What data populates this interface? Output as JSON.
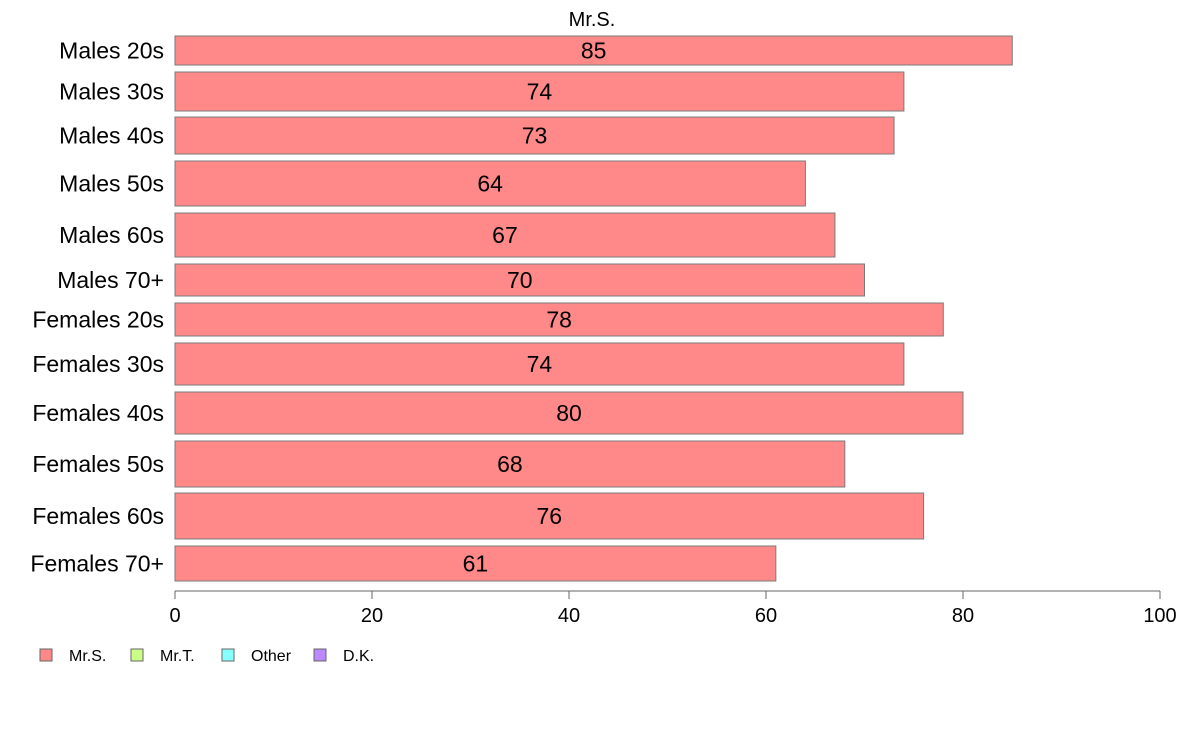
{
  "chart_data": {
    "type": "bar",
    "orientation": "horizontal",
    "title": "Mr.S.",
    "categories": [
      "Males 20s",
      "Males 30s",
      "Males 40s",
      "Males 50s",
      "Males 60s",
      "Males 70+",
      "Females 20s",
      "Females 30s",
      "Females 40s",
      "Females 50s",
      "Females 60s",
      "Females 70+"
    ],
    "series": [
      {
        "name": "Mr.S.",
        "color": "#ff8888",
        "values": [
          85,
          74,
          73,
          64,
          67,
          70,
          78,
          74,
          80,
          68,
          76,
          61
        ]
      }
    ],
    "xlim": [
      0,
      100
    ],
    "xticks": [
      0,
      20,
      40,
      60,
      80,
      100
    ],
    "legend": {
      "placement": "bottom-left",
      "entries": [
        {
          "label": "Mr.S.",
          "color": "#ff8888"
        },
        {
          "label": "Mr.T.",
          "color": "#ccff88"
        },
        {
          "label": "Other",
          "color": "#88ffff"
        },
        {
          "label": "D.K.",
          "color": "#bb88ff"
        }
      ]
    },
    "grid": false
  }
}
